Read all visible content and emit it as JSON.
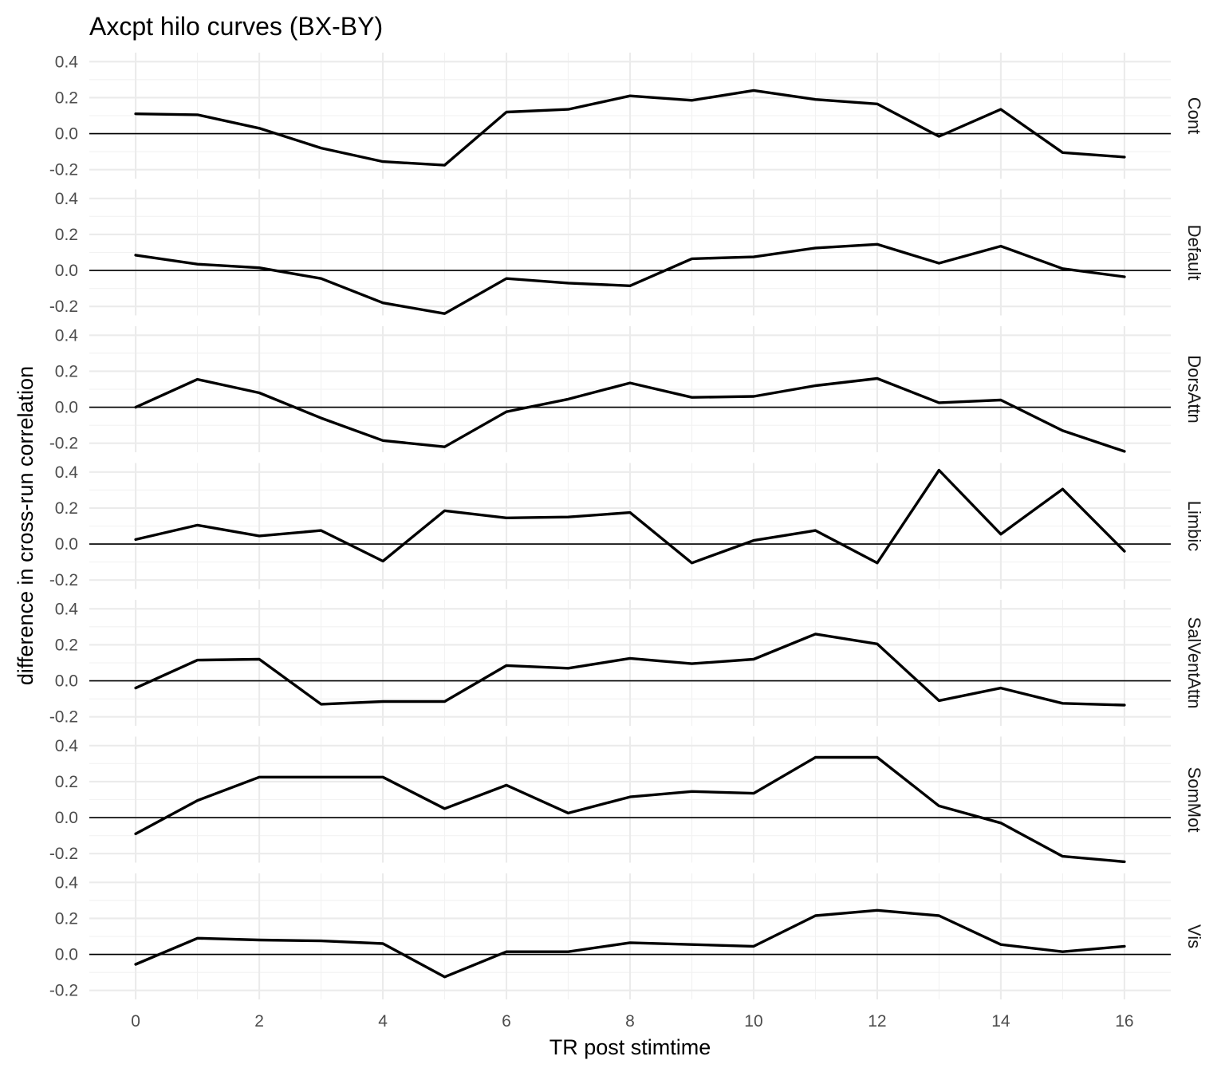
{
  "chart_data": {
    "type": "line",
    "title": "Axcpt hilo curves (BX-BY)",
    "xlabel": "TR post stimtime",
    "ylabel": "difference in cross-run correlation",
    "x": [
      0,
      1,
      2,
      3,
      4,
      5,
      6,
      7,
      8,
      9,
      10,
      11,
      12,
      13,
      14,
      15,
      16
    ],
    "x_ticks": [
      0,
      2,
      4,
      6,
      8,
      10,
      12,
      14,
      16
    ],
    "x_tick_labels": [
      "0",
      "2",
      "4",
      "6",
      "8",
      "10",
      "12",
      "14",
      "16"
    ],
    "xlim": [
      -0.75,
      16.75
    ],
    "ylim": [
      -0.25,
      0.45
    ],
    "y_ticks": [
      -0.2,
      0.0,
      0.2,
      0.4
    ],
    "y_tick_labels": [
      "-0.2",
      "0.0",
      "0.2",
      "0.4"
    ],
    "reference_line": 0,
    "grid": true,
    "facets": [
      {
        "label": "Cont",
        "values": [
          0.11,
          0.105,
          0.03,
          -0.08,
          -0.155,
          -0.175,
          0.12,
          0.135,
          0.21,
          0.185,
          0.24,
          0.19,
          0.165,
          -0.015,
          0.135,
          -0.105,
          -0.13
        ]
      },
      {
        "label": "Default",
        "values": [
          0.085,
          0.035,
          0.015,
          -0.045,
          -0.18,
          -0.24,
          -0.045,
          -0.07,
          -0.085,
          0.065,
          0.075,
          0.125,
          0.145,
          0.04,
          0.135,
          0.01,
          -0.035
        ]
      },
      {
        "label": "DorsAttn",
        "values": [
          0.0,
          0.155,
          0.08,
          -0.06,
          -0.185,
          -0.22,
          -0.025,
          0.045,
          0.135,
          0.055,
          0.06,
          0.12,
          0.16,
          0.025,
          0.04,
          -0.13,
          -0.245
        ]
      },
      {
        "label": "Limbic",
        "values": [
          0.025,
          0.105,
          0.045,
          0.075,
          -0.095,
          0.185,
          0.145,
          0.15,
          0.175,
          -0.105,
          0.02,
          0.075,
          -0.105,
          0.41,
          0.055,
          0.305,
          -0.04
        ]
      },
      {
        "label": "SalVentAttn",
        "values": [
          -0.04,
          0.115,
          0.12,
          -0.13,
          -0.115,
          -0.115,
          0.085,
          0.07,
          0.125,
          0.095,
          0.12,
          0.26,
          0.205,
          -0.11,
          -0.04,
          -0.125,
          -0.135
        ]
      },
      {
        "label": "SomMot",
        "values": [
          -0.09,
          0.095,
          0.225,
          0.225,
          0.225,
          0.05,
          0.18,
          0.025,
          0.115,
          0.145,
          0.135,
          0.335,
          0.335,
          0.065,
          -0.03,
          -0.215,
          -0.245
        ]
      },
      {
        "label": "Vis",
        "values": [
          -0.055,
          0.09,
          0.08,
          0.075,
          0.06,
          -0.125,
          0.015,
          0.015,
          0.065,
          0.055,
          0.045,
          0.215,
          0.245,
          0.215,
          0.055,
          0.015,
          0.045
        ]
      }
    ]
  }
}
